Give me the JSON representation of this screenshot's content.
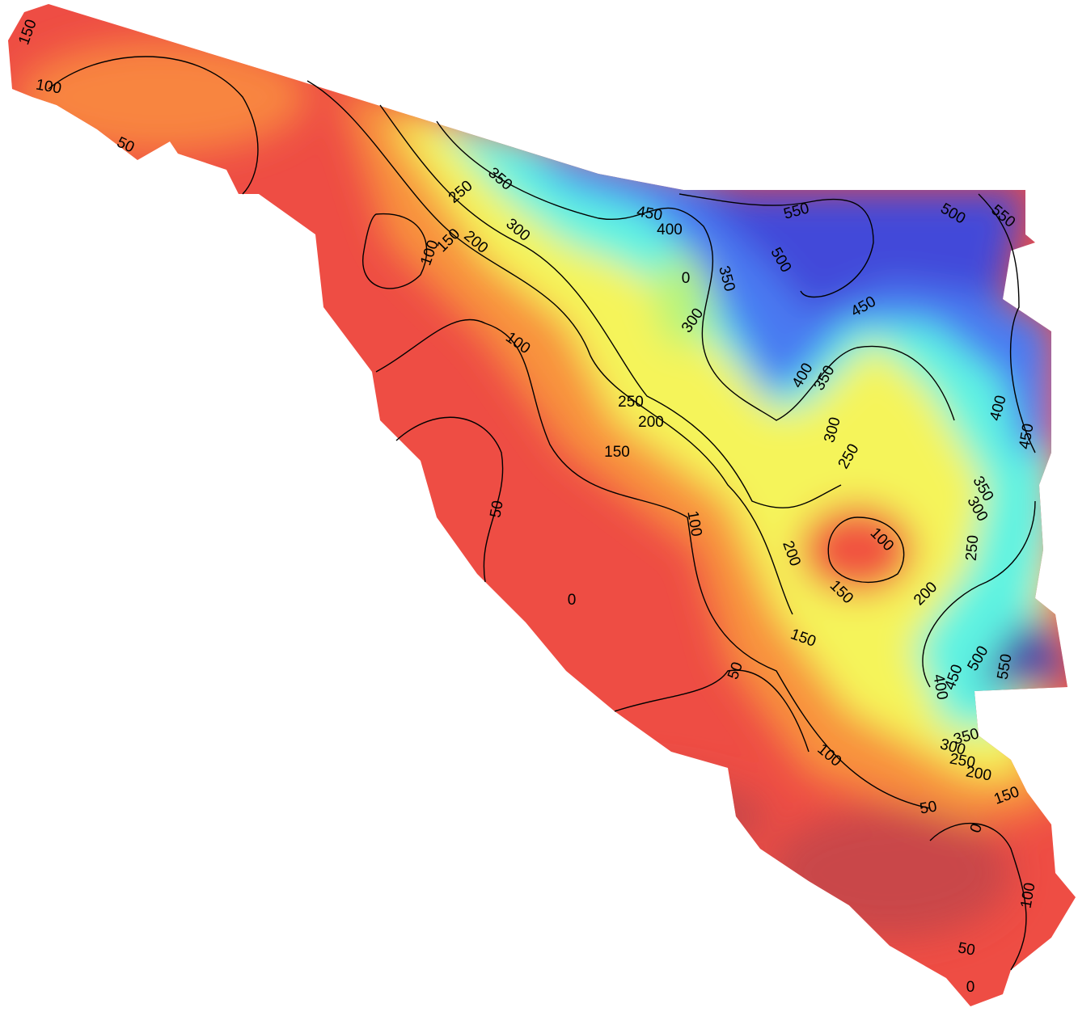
{
  "map": {
    "contour_labels": [
      150,
      100,
      50,
      350,
      250,
      300,
      150,
      200,
      100,
      450,
      400,
      550,
      500,
      550,
      500,
      0,
      350,
      300,
      450,
      100,
      400,
      350,
      250,
      200,
      400,
      450,
      300,
      250,
      150,
      350,
      300,
      50,
      100,
      100,
      200,
      250,
      150,
      200,
      0,
      150,
      50,
      500,
      550,
      450,
      400,
      350,
      300,
      250,
      200,
      100,
      150,
      50,
      0,
      100,
      50,
      0
    ]
  }
}
